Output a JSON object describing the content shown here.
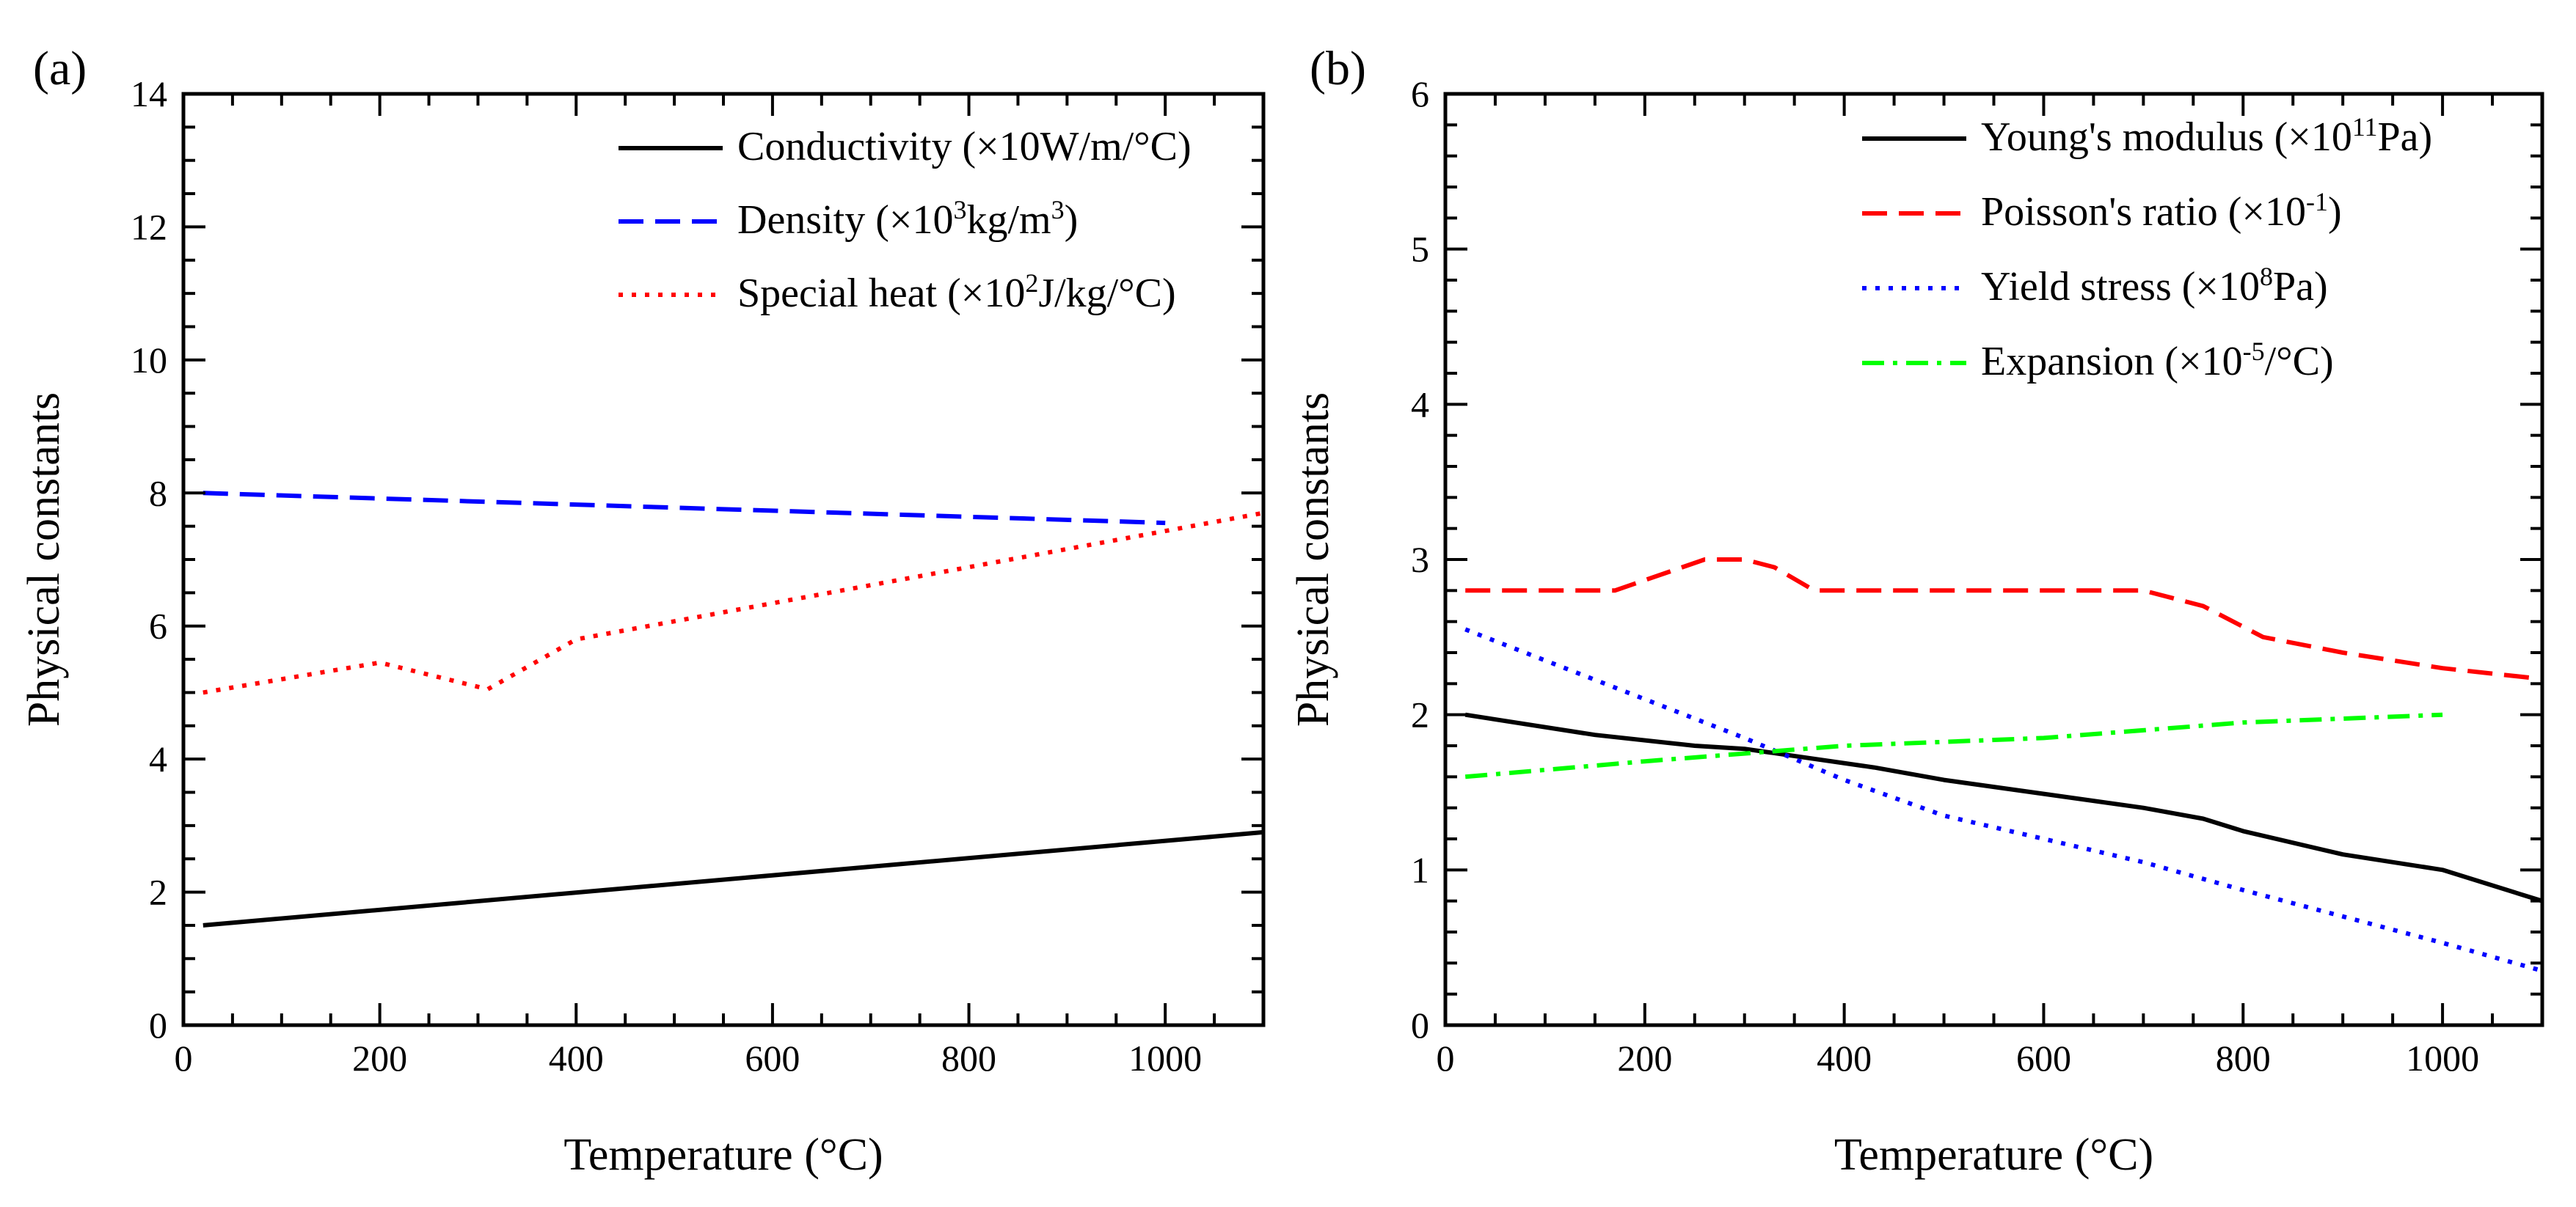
{
  "chart_data": [
    {
      "type": "line",
      "panel_label": "(a)",
      "xlabel": "Temperature (°C)",
      "ylabel": "Physical constants",
      "xlim": [
        0,
        1100
      ],
      "ylim": [
        0,
        14
      ],
      "xticks": [
        0,
        200,
        400,
        600,
        800,
        1000
      ],
      "yticks": [
        0,
        2,
        4,
        6,
        8,
        10,
        12,
        14
      ],
      "grid": false,
      "legend_position": "top-right",
      "series": [
        {
          "name": "Conductivity (×10W/m/°C)",
          "legend": {
            "pre": "Conductivity (×10W/m/°C)"
          },
          "color": "#000000",
          "style": "solid",
          "x": [
            20,
            1100
          ],
          "y": [
            1.5,
            2.9
          ]
        },
        {
          "name": "Density (×10³kg/m³)",
          "legend": {
            "pre": "Density (×10",
            "sup1": "3",
            "mid": "kg/m",
            "sup2": "3",
            "post": ")"
          },
          "color": "#0000ff",
          "style": "dashed",
          "x": [
            20,
            1000
          ],
          "y": [
            8.0,
            7.55
          ]
        },
        {
          "name": "Special heat (×10²J/kg/°C)",
          "legend": {
            "pre": "Special heat (×10",
            "sup1": "2",
            "mid": "J/kg/°C)"
          },
          "color": "#ff0000",
          "style": "dotted",
          "x": [
            20,
            200,
            310,
            400,
            1100
          ],
          "y": [
            5.0,
            5.45,
            5.05,
            5.8,
            7.7
          ]
        }
      ]
    },
    {
      "type": "line",
      "panel_label": "(b)",
      "xlabel": "Temperature (°C)",
      "ylabel": "Physical constants",
      "xlim": [
        0,
        1100
      ],
      "ylim": [
        0,
        6
      ],
      "xticks": [
        0,
        200,
        400,
        600,
        800,
        1000
      ],
      "yticks": [
        0,
        1,
        2,
        3,
        4,
        5,
        6
      ],
      "grid": false,
      "legend_position": "top-right",
      "series": [
        {
          "name": "Young's modulus (×10¹¹Pa)",
          "legend": {
            "pre": "Young's modulus (×10",
            "sup1": "11",
            "mid": "Pa)"
          },
          "color": "#000000",
          "style": "solid",
          "x": [
            20,
            150,
            250,
            300,
            430,
            500,
            600,
            700,
            760,
            800,
            900,
            1000,
            1100
          ],
          "y": [
            2.0,
            1.87,
            1.8,
            1.78,
            1.66,
            1.58,
            1.49,
            1.4,
            1.33,
            1.25,
            1.1,
            1.0,
            0.8
          ]
        },
        {
          "name": "Poisson's ratio (×10⁻¹)",
          "legend": {
            "pre": "Poisson's ratio (×10",
            "sup1": "-1",
            "mid": ")"
          },
          "color": "#ff0000",
          "style": "dashed",
          "x": [
            20,
            170,
            260,
            300,
            330,
            370,
            700,
            760,
            820,
            900,
            1000,
            1100
          ],
          "y": [
            2.8,
            2.8,
            3.0,
            3.0,
            2.95,
            2.8,
            2.8,
            2.7,
            2.5,
            2.4,
            2.3,
            2.23
          ]
        },
        {
          "name": "Yield stress (×10⁸Pa)",
          "legend": {
            "pre": "Yield stress (×10",
            "sup1": "8",
            "mid": "Pa)"
          },
          "color": "#0000ff",
          "style": "dotted",
          "x": [
            20,
            100,
            200,
            300,
            400,
            500,
            600,
            700,
            800,
            900,
            1000,
            1100
          ],
          "y": [
            2.55,
            2.35,
            2.1,
            1.85,
            1.58,
            1.35,
            1.2,
            1.05,
            0.87,
            0.7,
            0.53,
            0.35
          ]
        },
        {
          "name": "Expansion (×10⁻⁵/°C)",
          "legend": {
            "pre": "Expansion (×10",
            "sup1": "-5",
            "mid": "/°C)"
          },
          "color": "#00ff00",
          "style": "dashdot",
          "x": [
            20,
            200,
            400,
            600,
            800,
            1000
          ],
          "y": [
            1.6,
            1.7,
            1.8,
            1.85,
            1.95,
            2.0
          ]
        }
      ]
    }
  ]
}
